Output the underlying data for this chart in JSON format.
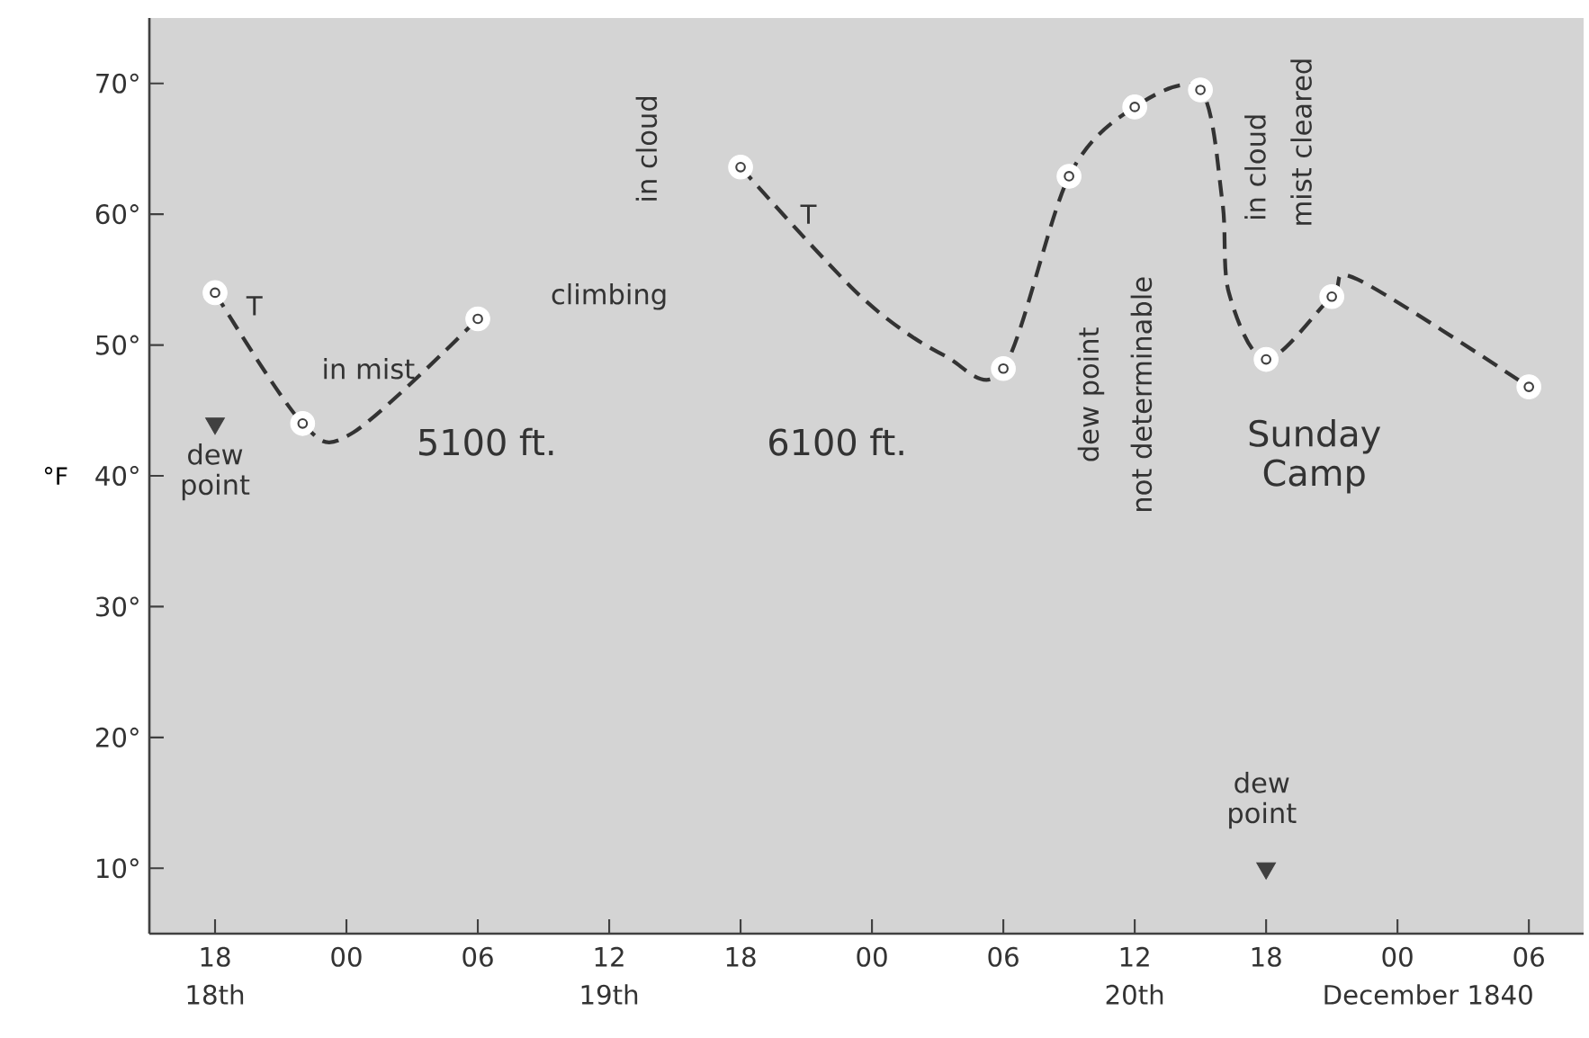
{
  "chart_data": {
    "type": "line",
    "ylabel": "°F",
    "xlim": [
      "1840-12-18T15:00",
      "1840-12-21T08:30"
    ],
    "ylim": [
      5,
      75
    ],
    "xticks": [
      {
        "value": "1840-12-18T18:00",
        "label": "18"
      },
      {
        "value": "1840-12-19T00:00",
        "label": "00"
      },
      {
        "value": "1840-12-19T06:00",
        "label": "06"
      },
      {
        "value": "1840-12-19T12:00",
        "label": "12"
      },
      {
        "value": "1840-12-19T18:00",
        "label": "18"
      },
      {
        "value": "1840-12-20T00:00",
        "label": "00"
      },
      {
        "value": "1840-12-20T06:00",
        "label": "06"
      },
      {
        "value": "1840-12-20T12:00",
        "label": "12"
      },
      {
        "value": "1840-12-20T18:00",
        "label": "18"
      },
      {
        "value": "1840-12-21T00:00",
        "label": "00"
      },
      {
        "value": "1840-12-21T06:00",
        "label": "06"
      }
    ],
    "yticks": [
      {
        "value": 10,
        "label": "10°"
      },
      {
        "value": 20,
        "label": "20°"
      },
      {
        "value": 30,
        "label": "30°"
      },
      {
        "value": 40,
        "label": "40°"
      },
      {
        "value": 50,
        "label": "50°"
      },
      {
        "value": 60,
        "label": "60°"
      },
      {
        "value": 70,
        "label": "70°"
      }
    ],
    "grid": false,
    "series": [
      {
        "color": "#333333",
        "line_style": "dashed",
        "x": [
          "1840-12-18T18:00",
          "1840-12-18T22:00",
          "1840-12-19T00:18",
          "1840-12-19T06:00",
          "1840-12-19T12:00",
          "1840-12-19T18:00",
          "1840-12-19T23:30",
          "1840-12-20T03:18",
          "1840-12-20T06:00",
          "1840-12-20T09:00",
          "1840-12-20T12:00",
          "1840-12-20T15:00",
          "1840-12-20T16:00",
          "1840-12-20T16:18",
          "1840-12-20T18:00",
          "1840-12-20T21:00",
          "1840-12-20T22:12",
          "1840-12-21T06:00"
        ],
        "values": [
          54,
          44,
          43.3,
          52,
          null,
          63.6,
          53.7,
          49.2,
          48.2,
          62.9,
          68.2,
          69.5,
          61,
          54,
          48.9,
          53.7,
          55,
          46.8
        ]
      },
      {
        "type": "scatter",
        "color": "#ffffff",
        "marker": "circle",
        "x": [
          "1840-12-18T18:00",
          "1840-12-18T22:00",
          "1840-12-19T06:00",
          "1840-12-19T18:00",
          "1840-12-20T06:00",
          "1840-12-20T09:00",
          "1840-12-20T12:00",
          "1840-12-20T15:00",
          "1840-12-20T18:00",
          "1840-12-20T21:00",
          "1840-12-21T06:00"
        ],
        "values": [
          54,
          44,
          52,
          63.6,
          48.2,
          62.9,
          68.2,
          69.5,
          48.9,
          53.7,
          46.8
        ]
      },
      {
        "type": "scatter",
        "color": "#404040",
        "marker": "triangle",
        "x": [
          "1840-12-18T18:00",
          "1840-12-20T18:00"
        ],
        "values": [
          44,
          10
        ]
      }
    ],
    "annotations": [
      "T",
      "T",
      "in mist",
      "5100 ft.",
      "6100 ft.",
      "climbing",
      "in cloud",
      "dew point",
      "dew point",
      "dew point",
      "not determinable",
      "in cloud",
      "mist cleared",
      "Sunday Camp",
      "18th",
      "19th",
      "20th",
      "December 1840"
    ]
  }
}
